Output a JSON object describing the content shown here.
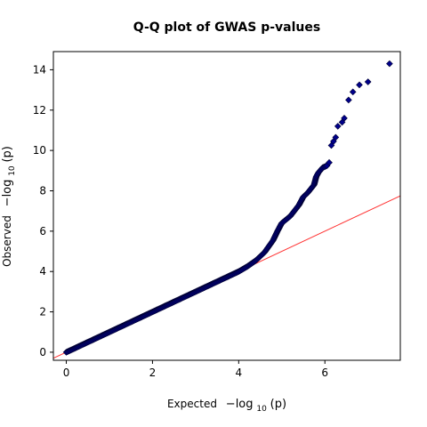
{
  "chart_data": {
    "type": "scatter",
    "title": "Q-Q plot of GWAS p-values",
    "xlabel": {
      "prefix": "Expected",
      "math_pre": "−log",
      "sub": "10",
      "math_post": "(p)"
    },
    "ylabel": {
      "prefix": "Observed",
      "math_pre": "−log",
      "sub": "10",
      "math_post": "(p)"
    },
    "xlim": [
      -0.3,
      7.75
    ],
    "ylim": [
      -0.4,
      14.9
    ],
    "xticks": [
      0,
      2,
      4,
      6
    ],
    "yticks": [
      0,
      2,
      4,
      6,
      8,
      10,
      12,
      14
    ],
    "grid": false,
    "reference_line": {
      "slope": 1,
      "intercept": 0,
      "color": "#ff3333"
    },
    "series": [
      {
        "marker": "diamond",
        "color": "#00008b",
        "points": [
          [
            0.0,
            0.0
          ],
          [
            0.2,
            0.2
          ],
          [
            0.5,
            0.5
          ],
          [
            1.0,
            1.0
          ],
          [
            1.5,
            1.5
          ],
          [
            2.0,
            2.0
          ],
          [
            2.5,
            2.5
          ],
          [
            3.0,
            3.0
          ],
          [
            3.5,
            3.5
          ],
          [
            4.0,
            4.0
          ],
          [
            4.2,
            4.25
          ],
          [
            4.4,
            4.55
          ],
          [
            4.6,
            4.95
          ],
          [
            4.8,
            5.55
          ],
          [
            4.9,
            6.0
          ],
          [
            5.0,
            6.4
          ],
          [
            5.2,
            6.75
          ],
          [
            5.4,
            7.3
          ],
          [
            5.5,
            7.7
          ],
          [
            5.6,
            7.9
          ],
          [
            5.75,
            8.3
          ],
          [
            5.8,
            8.7
          ],
          [
            5.85,
            8.9
          ],
          [
            5.95,
            9.15
          ],
          [
            6.05,
            9.25
          ],
          [
            6.1,
            9.4
          ],
          [
            6.15,
            10.25
          ],
          [
            6.2,
            10.45
          ],
          [
            6.25,
            10.65
          ],
          [
            6.3,
            11.2
          ],
          [
            6.4,
            11.4
          ],
          [
            6.45,
            11.6
          ],
          [
            6.55,
            12.5
          ],
          [
            6.65,
            12.9
          ],
          [
            6.8,
            13.25
          ],
          [
            7.0,
            13.4
          ],
          [
            7.5,
            14.3
          ]
        ]
      }
    ]
  }
}
